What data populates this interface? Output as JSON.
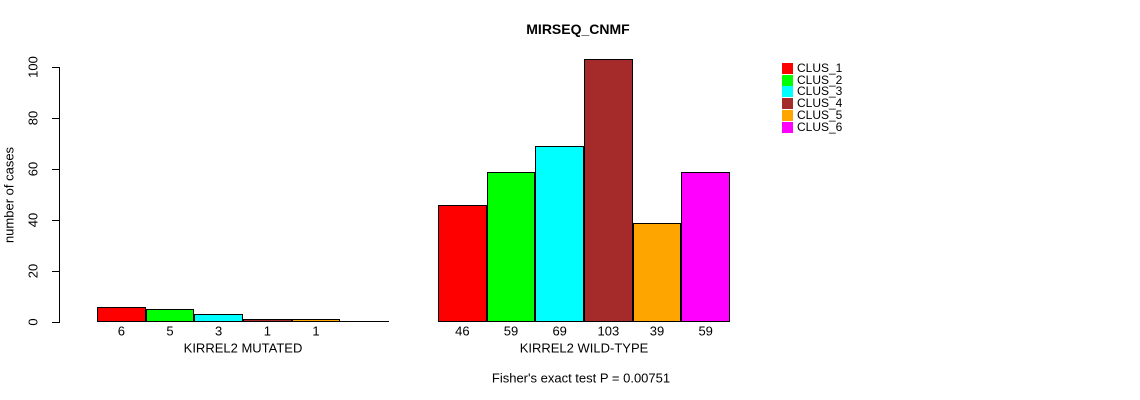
{
  "chart_data": {
    "type": "bar",
    "title": "MIRSEQ_CNMF",
    "ylabel": "number of cases",
    "ylim": [
      0,
      100
    ],
    "yticks": [
      0,
      20,
      40,
      60,
      80,
      100
    ],
    "grid": false,
    "legend_position": "right",
    "legend": [
      {
        "label": "CLUS_1",
        "color": "#FF0000"
      },
      {
        "label": "CLUS_2",
        "color": "#00FF00"
      },
      {
        "label": "CLUS_3",
        "color": "#00FFFF"
      },
      {
        "label": "CLUS_4",
        "color": "#A52A2A"
      },
      {
        "label": "CLUS_5",
        "color": "#FFA500"
      },
      {
        "label": "CLUS_6",
        "color": "#FF00FF"
      }
    ],
    "groups": [
      {
        "xlabel": "KIRREL2 MUTATED",
        "values": [
          6,
          5,
          3,
          1,
          1,
          0
        ],
        "bar_labels": [
          "6",
          "5",
          "3",
          "1",
          "1",
          ""
        ]
      },
      {
        "xlabel": "KIRREL2 WILD-TYPE",
        "values": [
          46,
          59,
          69,
          103,
          39,
          59
        ],
        "bar_labels": [
          "46",
          "59",
          "69",
          "103",
          "39",
          "59"
        ]
      }
    ],
    "footnote": "Fisher's exact test P = 0.00751"
  }
}
